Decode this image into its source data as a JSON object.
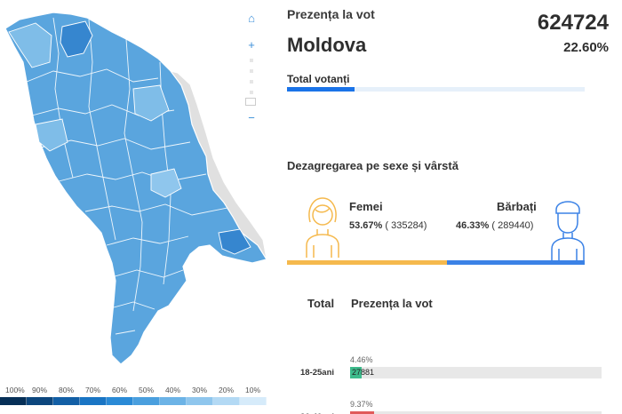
{
  "map": {
    "controls": {
      "home_icon": "home-icon",
      "zoom_in_icon": "plus-icon",
      "zoom_out_icon": "minus-icon"
    },
    "colors": {
      "light": "#7fbde8",
      "mid": "#5aa5de",
      "dark": "#3686cf",
      "neighbor": "#e0e0e0",
      "border": "#ffffff"
    },
    "legend": {
      "labels": [
        "100%",
        "90%",
        "80%",
        "70%",
        "60%",
        "50%",
        "40%",
        "30%",
        "20%",
        "10%"
      ],
      "colors": [
        "#062f57",
        "#0c467d",
        "#135fa5",
        "#1a75c4",
        "#2a8ad6",
        "#4a9fde",
        "#6cb3e6",
        "#8fc6ed",
        "#b3d9f4",
        "#d6ebfa"
      ]
    }
  },
  "stats": {
    "title": "Prezența la vot",
    "region": "Moldova",
    "count": "624724",
    "percent": "22.60%",
    "total_label": "Total votanți",
    "total_fraction": 0.226
  },
  "gender": {
    "heading": "Dezagregarea pe sexe și vârstă",
    "female_label": "Femei",
    "female_pct": "53.67%",
    "female_count": "( 335284)",
    "male_label": "Bărbați",
    "male_pct": "46.33%",
    "male_count": "( 289440)",
    "female_fraction": 0.5367,
    "colors": {
      "female": "#f5b94d",
      "male": "#3b82e6"
    }
  },
  "age": {
    "col_total": "Total",
    "col_presence": "Prezența la vot",
    "rows": [
      {
        "label": "18-25ani",
        "pct": "4.46%",
        "count": "27881",
        "fraction": 0.0446,
        "color": "#3dbb8c"
      },
      {
        "label": "26-40ani",
        "pct": "9.37%",
        "count": "",
        "fraction": 0.0937,
        "color": "#e05a5a"
      }
    ]
  }
}
